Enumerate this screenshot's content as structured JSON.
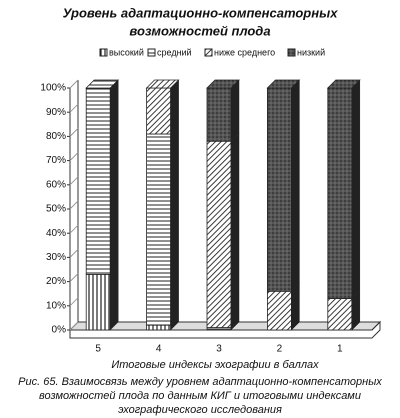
{
  "chart_data": {
    "type": "stacked-bar-3d",
    "title": [
      "Уровень адаптационно-компенсаторных",
      "возможностей  плода"
    ],
    "categories": [
      "5",
      "4",
      "3",
      "2",
      "1"
    ],
    "series": [
      {
        "name": "высокий",
        "color": "#222222",
        "pattern": "vertical",
        "values": [
          23,
          2,
          0,
          0,
          0
        ]
      },
      {
        "name": "средний",
        "color": "#222222",
        "pattern": "horizontal",
        "values": [
          77,
          79,
          1,
          0,
          0
        ]
      },
      {
        "name": "ниже среднего",
        "color": "#222222",
        "pattern": "diagonal",
        "values": [
          0,
          19,
          77,
          16,
          13
        ]
      },
      {
        "name": "низкий",
        "color": "#222222",
        "pattern": "dots",
        "values": [
          0,
          0,
          22,
          84,
          87
        ]
      }
    ],
    "ylim": [
      0,
      100
    ],
    "yticks": [
      {
        "value": 0,
        "label": "0%"
      },
      {
        "value": 10,
        "label": "10%"
      },
      {
        "value": 20,
        "label": "20%"
      },
      {
        "value": 30,
        "label": "30%"
      },
      {
        "value": 40,
        "label": "40%"
      },
      {
        "value": 50,
        "label": "50%"
      },
      {
        "value": 60,
        "label": "60%"
      },
      {
        "value": 70,
        "label": "70%"
      },
      {
        "value": 80,
        "label": "80%"
      },
      {
        "value": 90,
        "label": "90%"
      },
      {
        "value": 100,
        "label": "100%"
      }
    ],
    "xlabel": "Итоговые индексы эхографии в баллах",
    "caption": [
      "Рис. 65. Взаимосвязь между уровнем адаптационно-компенсаторных",
      "возможностей плода по данным КИГ и итоговыми индексами",
      "эхографического исследования"
    ],
    "legend": "top"
  }
}
